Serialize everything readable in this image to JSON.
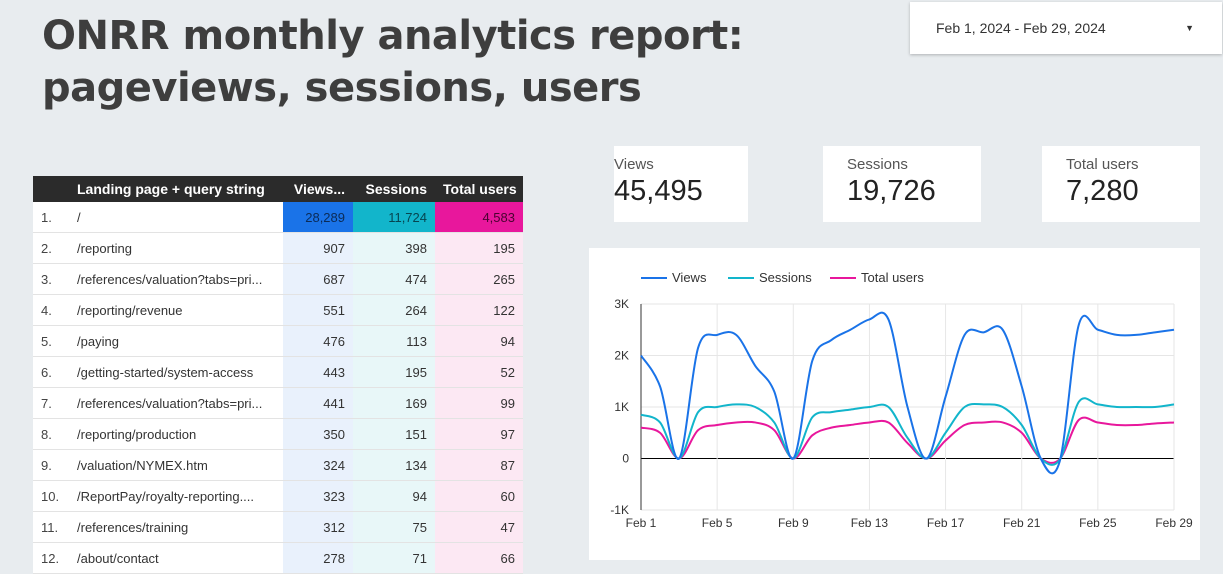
{
  "header": {
    "title_line1": "ONRR monthly analytics report:",
    "title_line2": "pageviews, sessions, users"
  },
  "date_range": {
    "label": "Feb 1, 2024 - Feb 29, 2024"
  },
  "table": {
    "columns": [
      "Landing page + query string",
      "Views...",
      "Sessions",
      "Total users"
    ],
    "rows": [
      {
        "idx": "1.",
        "page": "/",
        "views": "28,289",
        "sessions": "11,724",
        "users": "4,583"
      },
      {
        "idx": "2.",
        "page": "/reporting",
        "views": "907",
        "sessions": "398",
        "users": "195"
      },
      {
        "idx": "3.",
        "page": "/references/valuation?tabs=pri...",
        "views": "687",
        "sessions": "474",
        "users": "265"
      },
      {
        "idx": "4.",
        "page": "/reporting/revenue",
        "views": "551",
        "sessions": "264",
        "users": "122"
      },
      {
        "idx": "5.",
        "page": "/paying",
        "views": "476",
        "sessions": "113",
        "users": "94"
      },
      {
        "idx": "6.",
        "page": "/getting-started/system-access",
        "views": "443",
        "sessions": "195",
        "users": "52"
      },
      {
        "idx": "7.",
        "page": "/references/valuation?tabs=pri...",
        "views": "441",
        "sessions": "169",
        "users": "99"
      },
      {
        "idx": "8.",
        "page": "/reporting/production",
        "views": "350",
        "sessions": "151",
        "users": "97"
      },
      {
        "idx": "9.",
        "page": "/valuation/NYMEX.htm",
        "views": "324",
        "sessions": "134",
        "users": "87"
      },
      {
        "idx": "10.",
        "page": "/ReportPay/royalty-reporting....",
        "views": "323",
        "sessions": "94",
        "users": "60"
      },
      {
        "idx": "11.",
        "page": "/references/training",
        "views": "312",
        "sessions": "75",
        "users": "47"
      },
      {
        "idx": "12.",
        "page": "/about/contact",
        "views": "278",
        "sessions": "71",
        "users": "66"
      }
    ]
  },
  "scorecards": {
    "views": {
      "label": "Views",
      "value": "45,495"
    },
    "sessions": {
      "label": "Sessions",
      "value": "19,726"
    },
    "users": {
      "label": "Total users",
      "value": "7,280"
    }
  },
  "colors": {
    "views": "#1a73e8",
    "sessions": "#12b5cb",
    "users": "#e8179c"
  },
  "chart_data": {
    "type": "line",
    "title": "",
    "x": [
      1,
      2,
      3,
      4,
      5,
      6,
      7,
      8,
      9,
      10,
      11,
      12,
      13,
      14,
      15,
      16,
      17,
      18,
      19,
      20,
      21,
      22,
      23,
      24,
      25,
      26,
      27,
      28,
      29
    ],
    "xticks": [
      {
        "x": 1,
        "label": "Feb 1"
      },
      {
        "x": 5,
        "label": "Feb 5"
      },
      {
        "x": 9,
        "label": "Feb 9"
      },
      {
        "x": 13,
        "label": "Feb 13"
      },
      {
        "x": 17,
        "label": "Feb 17"
      },
      {
        "x": 21,
        "label": "Feb 21"
      },
      {
        "x": 25,
        "label": "Feb 25"
      },
      {
        "x": 29,
        "label": "Feb 29"
      }
    ],
    "yticks": [
      {
        "v": -1000,
        "label": "-1K"
      },
      {
        "v": 0,
        "label": "0"
      },
      {
        "v": 1000,
        "label": "1K"
      },
      {
        "v": 2000,
        "label": "2K"
      },
      {
        "v": 3000,
        "label": "3K"
      }
    ],
    "ylim": [
      -1000,
      3000
    ],
    "series": [
      {
        "name": "Views",
        "key": "views",
        "values": [
          2000,
          1400,
          0,
          2150,
          2400,
          2400,
          1800,
          1300,
          0,
          1900,
          2300,
          2500,
          2700,
          2700,
          1000,
          0,
          1200,
          2400,
          2450,
          2500,
          1400,
          0,
          -50,
          2600,
          2500,
          2400,
          2400,
          2450,
          2500
        ]
      },
      {
        "name": "Sessions",
        "key": "sessions",
        "values": [
          850,
          700,
          0,
          900,
          1000,
          1050,
          1000,
          700,
          0,
          800,
          900,
          950,
          1000,
          1000,
          400,
          0,
          500,
          1000,
          1050,
          1000,
          650,
          0,
          -20,
          1100,
          1050,
          1000,
          1000,
          1000,
          1050
        ]
      },
      {
        "name": "Total users",
        "key": "users",
        "values": [
          600,
          500,
          0,
          550,
          650,
          700,
          700,
          550,
          0,
          450,
          600,
          650,
          700,
          700,
          300,
          0,
          350,
          650,
          700,
          700,
          500,
          0,
          -10,
          750,
          700,
          650,
          650,
          680,
          700
        ]
      }
    ]
  }
}
